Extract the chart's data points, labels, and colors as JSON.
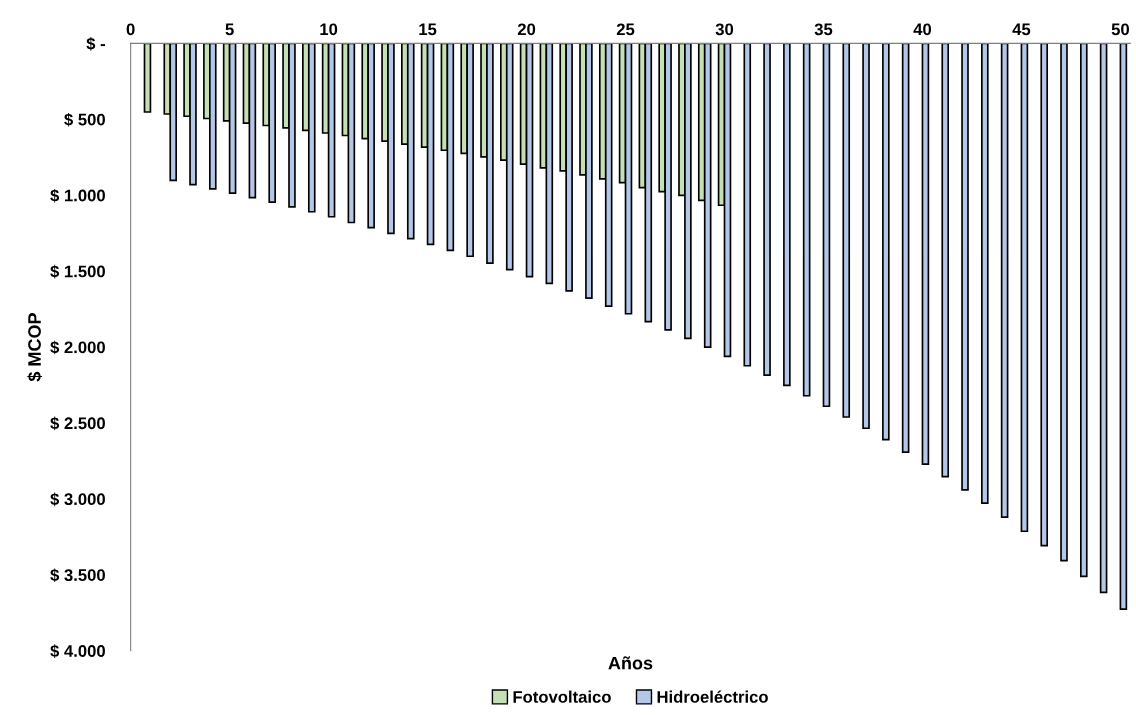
{
  "chart_data": {
    "type": "bar",
    "xlabel": "Años",
    "ylabel": "$ MCOP",
    "x": [
      1,
      2,
      3,
      4,
      5,
      6,
      7,
      8,
      9,
      10,
      11,
      12,
      13,
      14,
      15,
      16,
      17,
      18,
      19,
      20,
      21,
      22,
      23,
      24,
      25,
      26,
      27,
      28,
      29,
      30,
      31,
      32,
      33,
      34,
      35,
      36,
      37,
      38,
      39,
      40,
      41,
      42,
      43,
      44,
      45,
      46,
      47,
      48,
      49,
      50
    ],
    "series": [
      {
        "name": "Fotovoltaico",
        "color": "#c5e0b4",
        "values": [
          452,
          465,
          480,
          495,
          510,
          525,
          541,
          556,
          573,
          590,
          607,
          627,
          644,
          663,
          683,
          704,
          725,
          747,
          769,
          795,
          820,
          840,
          866,
          892,
          917,
          950,
          976,
          1001,
          1034,
          1066,
          null,
          null,
          null,
          null,
          null,
          null,
          null,
          null,
          null,
          null,
          null,
          null,
          null,
          null,
          null,
          null,
          null,
          null,
          null,
          null
        ]
      },
      {
        "name": "Hidroeléctrico",
        "color": "#b4c7e7",
        "values": [
          null,
          902,
          930,
          958,
          986,
          1016,
          1045,
          1077,
          1109,
          1142,
          1180,
          1213,
          1251,
          1286,
          1324,
          1363,
          1402,
          1447,
          1490,
          1536,
          1581,
          1630,
          1678,
          1730,
          1781,
          1833,
          1887,
          1943,
          2001,
          2061,
          2123,
          2185,
          2253,
          2321,
          2390,
          2461,
          2535,
          2610,
          2692,
          2771,
          2853,
          2941,
          3028,
          3120,
          3213,
          3308,
          3407,
          3510,
          3616,
          3726
        ]
      }
    ],
    "xlim": [
      0,
      50.5
    ],
    "xticks": [
      0,
      5,
      10,
      15,
      20,
      25,
      30,
      35,
      40,
      45,
      50
    ],
    "ylim": [
      4000,
      0
    ],
    "yticks": [
      {
        "value": 0,
        "label": "$ -"
      },
      {
        "value": 500,
        "label": "$ 500"
      },
      {
        "value": 1000,
        "label": "$ 1.000"
      },
      {
        "value": 1500,
        "label": "$ 1.500"
      },
      {
        "value": 2000,
        "label": "$ 2.000"
      },
      {
        "value": 2500,
        "label": "$ 2.500"
      },
      {
        "value": 3000,
        "label": "$ 3.000"
      },
      {
        "value": 3500,
        "label": "$ 3.500"
      },
      {
        "value": 4000,
        "label": "$ 4.000"
      }
    ],
    "grid": false,
    "legend": "bottom"
  }
}
